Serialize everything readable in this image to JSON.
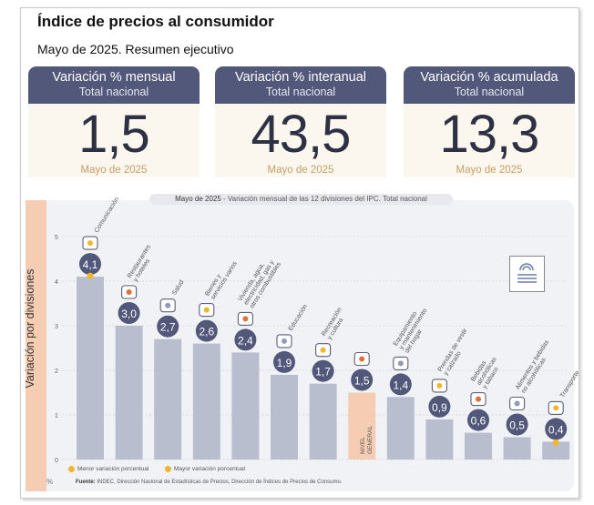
{
  "header": {
    "title": "Índice de precios al consumidor",
    "subtitle": "Mayo de 2025. Resumen ejecutivo"
  },
  "cards": [
    {
      "title": "Variación % mensual",
      "subtitle": "Total nacional",
      "value": "1,5",
      "date": "Mayo de 2025"
    },
    {
      "title": "Variación % interanual",
      "subtitle": "Total nacional",
      "value": "43,5",
      "date": "Mayo de 2025"
    },
    {
      "title": "Variación % acumulada",
      "subtitle": "Total nacional",
      "value": "13,3",
      "date": "Mayo de 2025"
    }
  ],
  "colors": {
    "card_header": "#515879",
    "card_body": "#fbf7ef",
    "bar": "#b8bece",
    "bar_general": "#f6cdb3",
    "label_circle": "#515879",
    "highlight": "#f3b52e"
  },
  "chart_data": {
    "type": "bar",
    "title_prefix": "Mayo de 2025",
    "title_rest": "Variación mensual de las 12 divisiones del IPC. Total nacional",
    "ylabel": "Variación por divisiones",
    "unit": "%",
    "ylim": [
      0,
      5
    ],
    "yticks": [
      "0",
      "1",
      "2",
      "3",
      "4",
      "5"
    ],
    "categories": [
      {
        "label": [
          "Comunicación"
        ],
        "value": 4.1,
        "value_label": "4,1",
        "icon": "phone-icon",
        "marker": "max"
      },
      {
        "label": [
          "Restaurantes",
          "y hoteles"
        ],
        "value": 3.0,
        "value_label": "3,0",
        "icon": "dining-icon"
      },
      {
        "label": [
          "Salud"
        ],
        "value": 2.7,
        "value_label": "2,7",
        "icon": "health-cross-icon"
      },
      {
        "label": [
          "Bienes y",
          "servicios varios"
        ],
        "value": 2.6,
        "value_label": "2,6",
        "icon": "grooming-icon"
      },
      {
        "label": [
          "Vivienda, agua,",
          "electricidad, gas y",
          "otros combustibles"
        ],
        "value": 2.4,
        "value_label": "2,4",
        "icon": "lightbulb-icon"
      },
      {
        "label": [
          "Educación"
        ],
        "value": 1.9,
        "value_label": "1,9",
        "icon": "books-icon"
      },
      {
        "label": [
          "Recreación",
          "y cultura"
        ],
        "value": 1.7,
        "value_label": "1,7",
        "icon": "beach-umbrella-icon"
      },
      {
        "label": [
          "NIVEL",
          "GENERAL"
        ],
        "value": 1.5,
        "value_label": "1,5",
        "icon": "shopping-basket-icon",
        "general": true
      },
      {
        "label": [
          "Equipamiento",
          "y mantenimiento",
          "del hogar"
        ],
        "value": 1.4,
        "value_label": "1,4",
        "icon": "sofa-icon"
      },
      {
        "label": [
          "Prendas de vestir",
          "y calzado"
        ],
        "value": 0.9,
        "value_label": "0,9",
        "icon": "shirt-icon"
      },
      {
        "label": [
          "Bebidas",
          "alcohólicas",
          "y tabaco"
        ],
        "value": 0.6,
        "value_label": "0,6",
        "icon": "bottle-icon"
      },
      {
        "label": [
          "Alimentos y bebidas",
          "no alcohólicas"
        ],
        "value": 0.5,
        "value_label": "0,5",
        "icon": "food-icon"
      },
      {
        "label": [
          "Transporte"
        ],
        "value": 0.4,
        "value_label": "0,4",
        "icon": "bus-icon",
        "marker": "min"
      }
    ],
    "legend": {
      "min": "Menor variación porcentual",
      "max": "Mayor variación porcentual"
    },
    "source_label": "Fuente:",
    "source_text": "INDEC, Dirección Nacional de Estadísticas de Precios, Dirección de Índices de Precios de Consumo."
  }
}
